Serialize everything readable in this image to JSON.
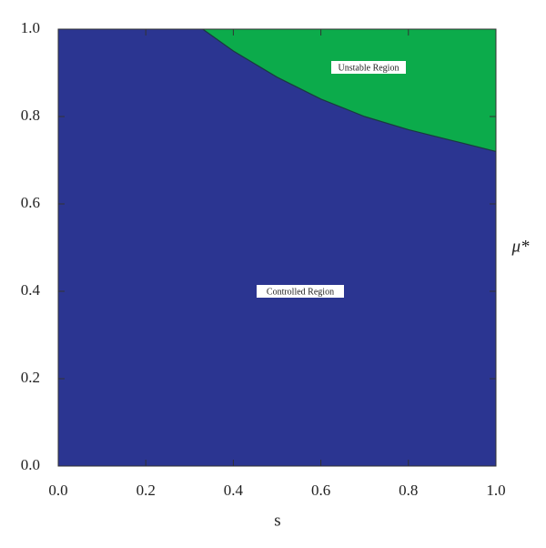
{
  "chart_data": {
    "type": "region",
    "x_label": "s",
    "y_label": "μ*",
    "x": [
      0.33,
      0.4,
      0.5,
      0.6,
      0.7,
      0.8,
      0.9,
      1.0
    ],
    "boundary": [
      1.0,
      0.95,
      0.89,
      0.84,
      0.8,
      0.77,
      0.745,
      0.72
    ],
    "regions": [
      {
        "name": "Controlled Region",
        "color": "#2b3591"
      },
      {
        "name": "Unstable Region",
        "color": "#0cab4b"
      }
    ],
    "xlim": [
      0,
      1
    ],
    "ylim": [
      0,
      1
    ],
    "xticks": [
      {
        "value": 0,
        "label": "0.0"
      },
      0.2,
      0.4,
      0.6,
      0.8,
      {
        "value": 1,
        "label": "1.0"
      }
    ],
    "yticks": [
      {
        "value": 0,
        "label": "0.0"
      },
      0.2,
      0.4,
      0.6,
      0.8,
      {
        "value": 1,
        "label": "1.0"
      }
    ]
  }
}
